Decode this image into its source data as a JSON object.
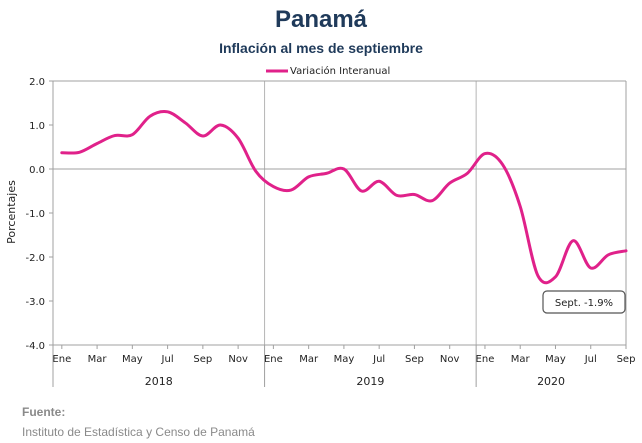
{
  "header": {
    "title": "Panamá",
    "subtitle": "Inflación al mes de septiembre"
  },
  "source": {
    "label": "Fuente:",
    "text": "Instituto de Estadística y Censo de Panamá"
  },
  "annotation": {
    "text": "Sept. -1.9%"
  },
  "colors": {
    "series": "#e0218a",
    "title": "#1f3a5a",
    "grid": "#b5b5b5",
    "source": "#8a8a8a"
  },
  "chart_data": {
    "type": "line",
    "title": "Inflación al mes de septiembre",
    "ylabel": "Porcentajes",
    "ylim": [
      -4.0,
      2.0
    ],
    "yticks": [
      "2.0",
      "1.0",
      "0.0",
      "-1.0",
      "-2.0",
      "-3.0",
      "-4.0"
    ],
    "legend": "top-center",
    "grid": "vertical lines at year boundaries",
    "x_tick_labels": [
      "Ene",
      "Mar",
      "May",
      "Jul",
      "Sep",
      "Nov",
      "Ene",
      "Mar",
      "May",
      "Jul",
      "Sep",
      "Nov",
      "Ene",
      "Mar",
      "May",
      "Jul",
      "Sep"
    ],
    "years": [
      "2018",
      "2019",
      "2020"
    ],
    "months": [
      "2018-01",
      "2018-02",
      "2018-03",
      "2018-04",
      "2018-05",
      "2018-06",
      "2018-07",
      "2018-08",
      "2018-09",
      "2018-10",
      "2018-11",
      "2018-12",
      "2019-01",
      "2019-02",
      "2019-03",
      "2019-04",
      "2019-05",
      "2019-06",
      "2019-07",
      "2019-08",
      "2019-09",
      "2019-10",
      "2019-11",
      "2019-12",
      "2020-01",
      "2020-02",
      "2020-03",
      "2020-04",
      "2020-05",
      "2020-06",
      "2020-07",
      "2020-08",
      "2020-09"
    ],
    "series": [
      {
        "name": "Variación Interanual",
        "values": [
          0.37,
          0.38,
          0.58,
          0.76,
          0.78,
          1.2,
          1.3,
          1.05,
          0.75,
          1.0,
          0.7,
          -0.05,
          -0.4,
          -0.48,
          -0.18,
          -0.1,
          0.0,
          -0.5,
          -0.28,
          -0.6,
          -0.58,
          -0.72,
          -0.32,
          -0.1,
          0.35,
          0.1,
          -0.85,
          -2.42,
          -2.45,
          -1.63,
          -2.25,
          -1.95,
          -1.86
        ]
      }
    ]
  }
}
